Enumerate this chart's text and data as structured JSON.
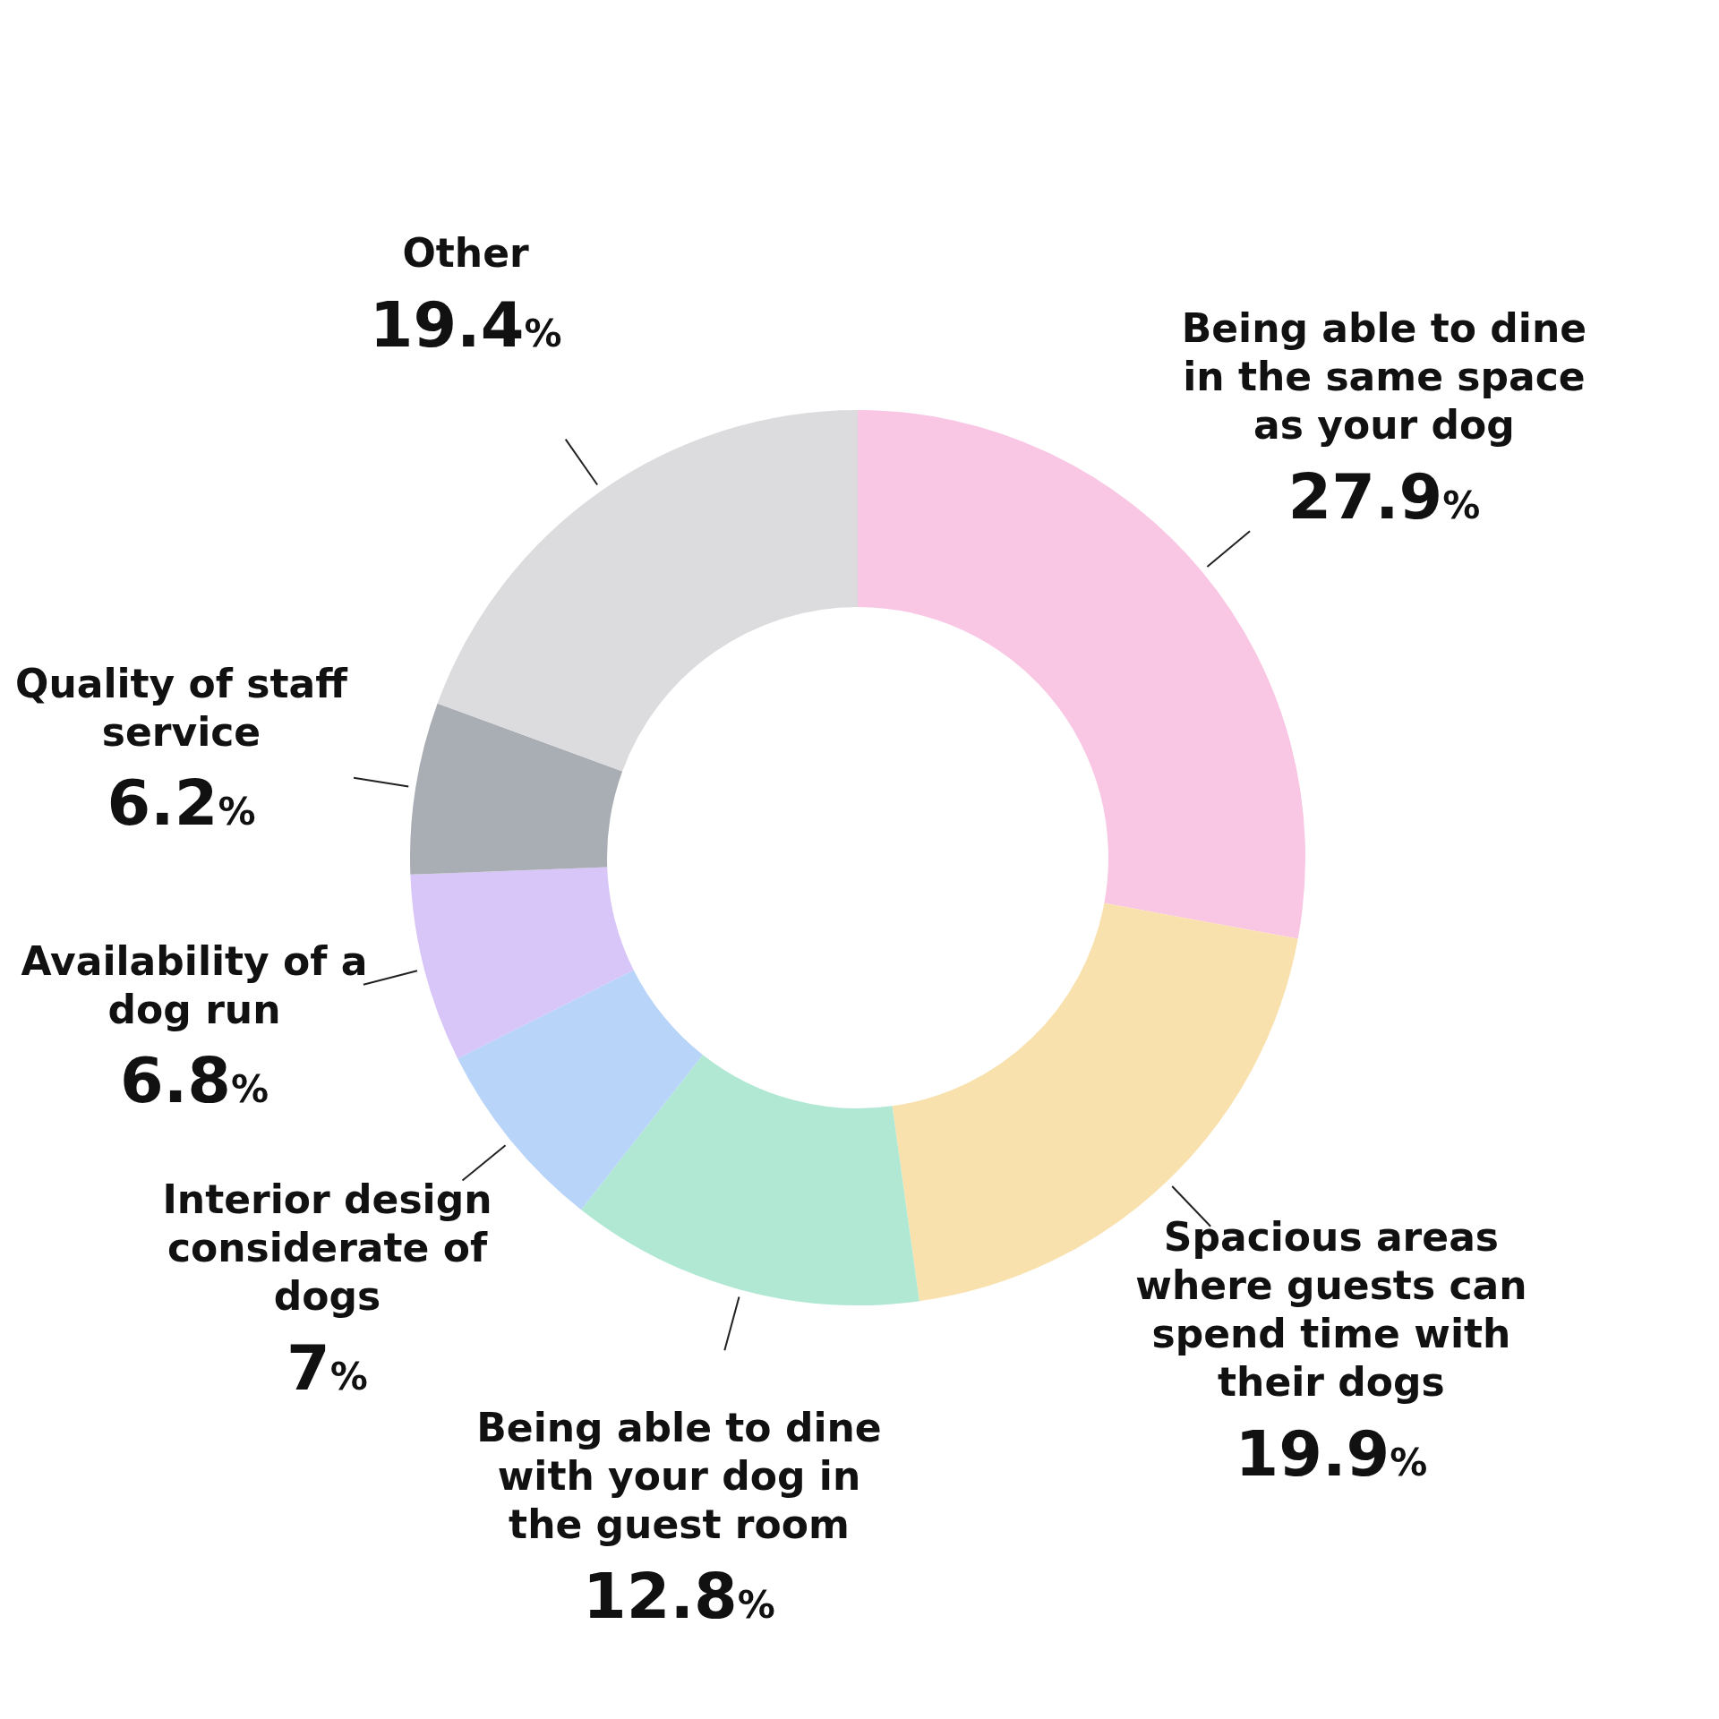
{
  "chart_data": {
    "type": "donut",
    "categories": [
      "Being able to dine in the same space as your dog",
      "Spacious areas where guests can spend time with their dogs",
      "Being able to dine with your dog in the guest room",
      "Interior design considerate of dogs",
      "Availability of a dog run",
      "Quality of staff service",
      "Other"
    ],
    "values": [
      27.9,
      19.9,
      12.8,
      7,
      6.8,
      6.2,
      19.4
    ],
    "colors": [
      "#f9c6e4",
      "#f9e1ae",
      "#b1e8d4",
      "#b8d4f8",
      "#d8c6f8",
      "#a9adb4",
      "#dcdcdf"
    ],
    "value_labels": [
      "27.9%",
      "19.9%",
      "12.8%",
      "7%",
      "6.8%",
      "6.2%",
      "19.4%"
    ],
    "legend": false
  }
}
